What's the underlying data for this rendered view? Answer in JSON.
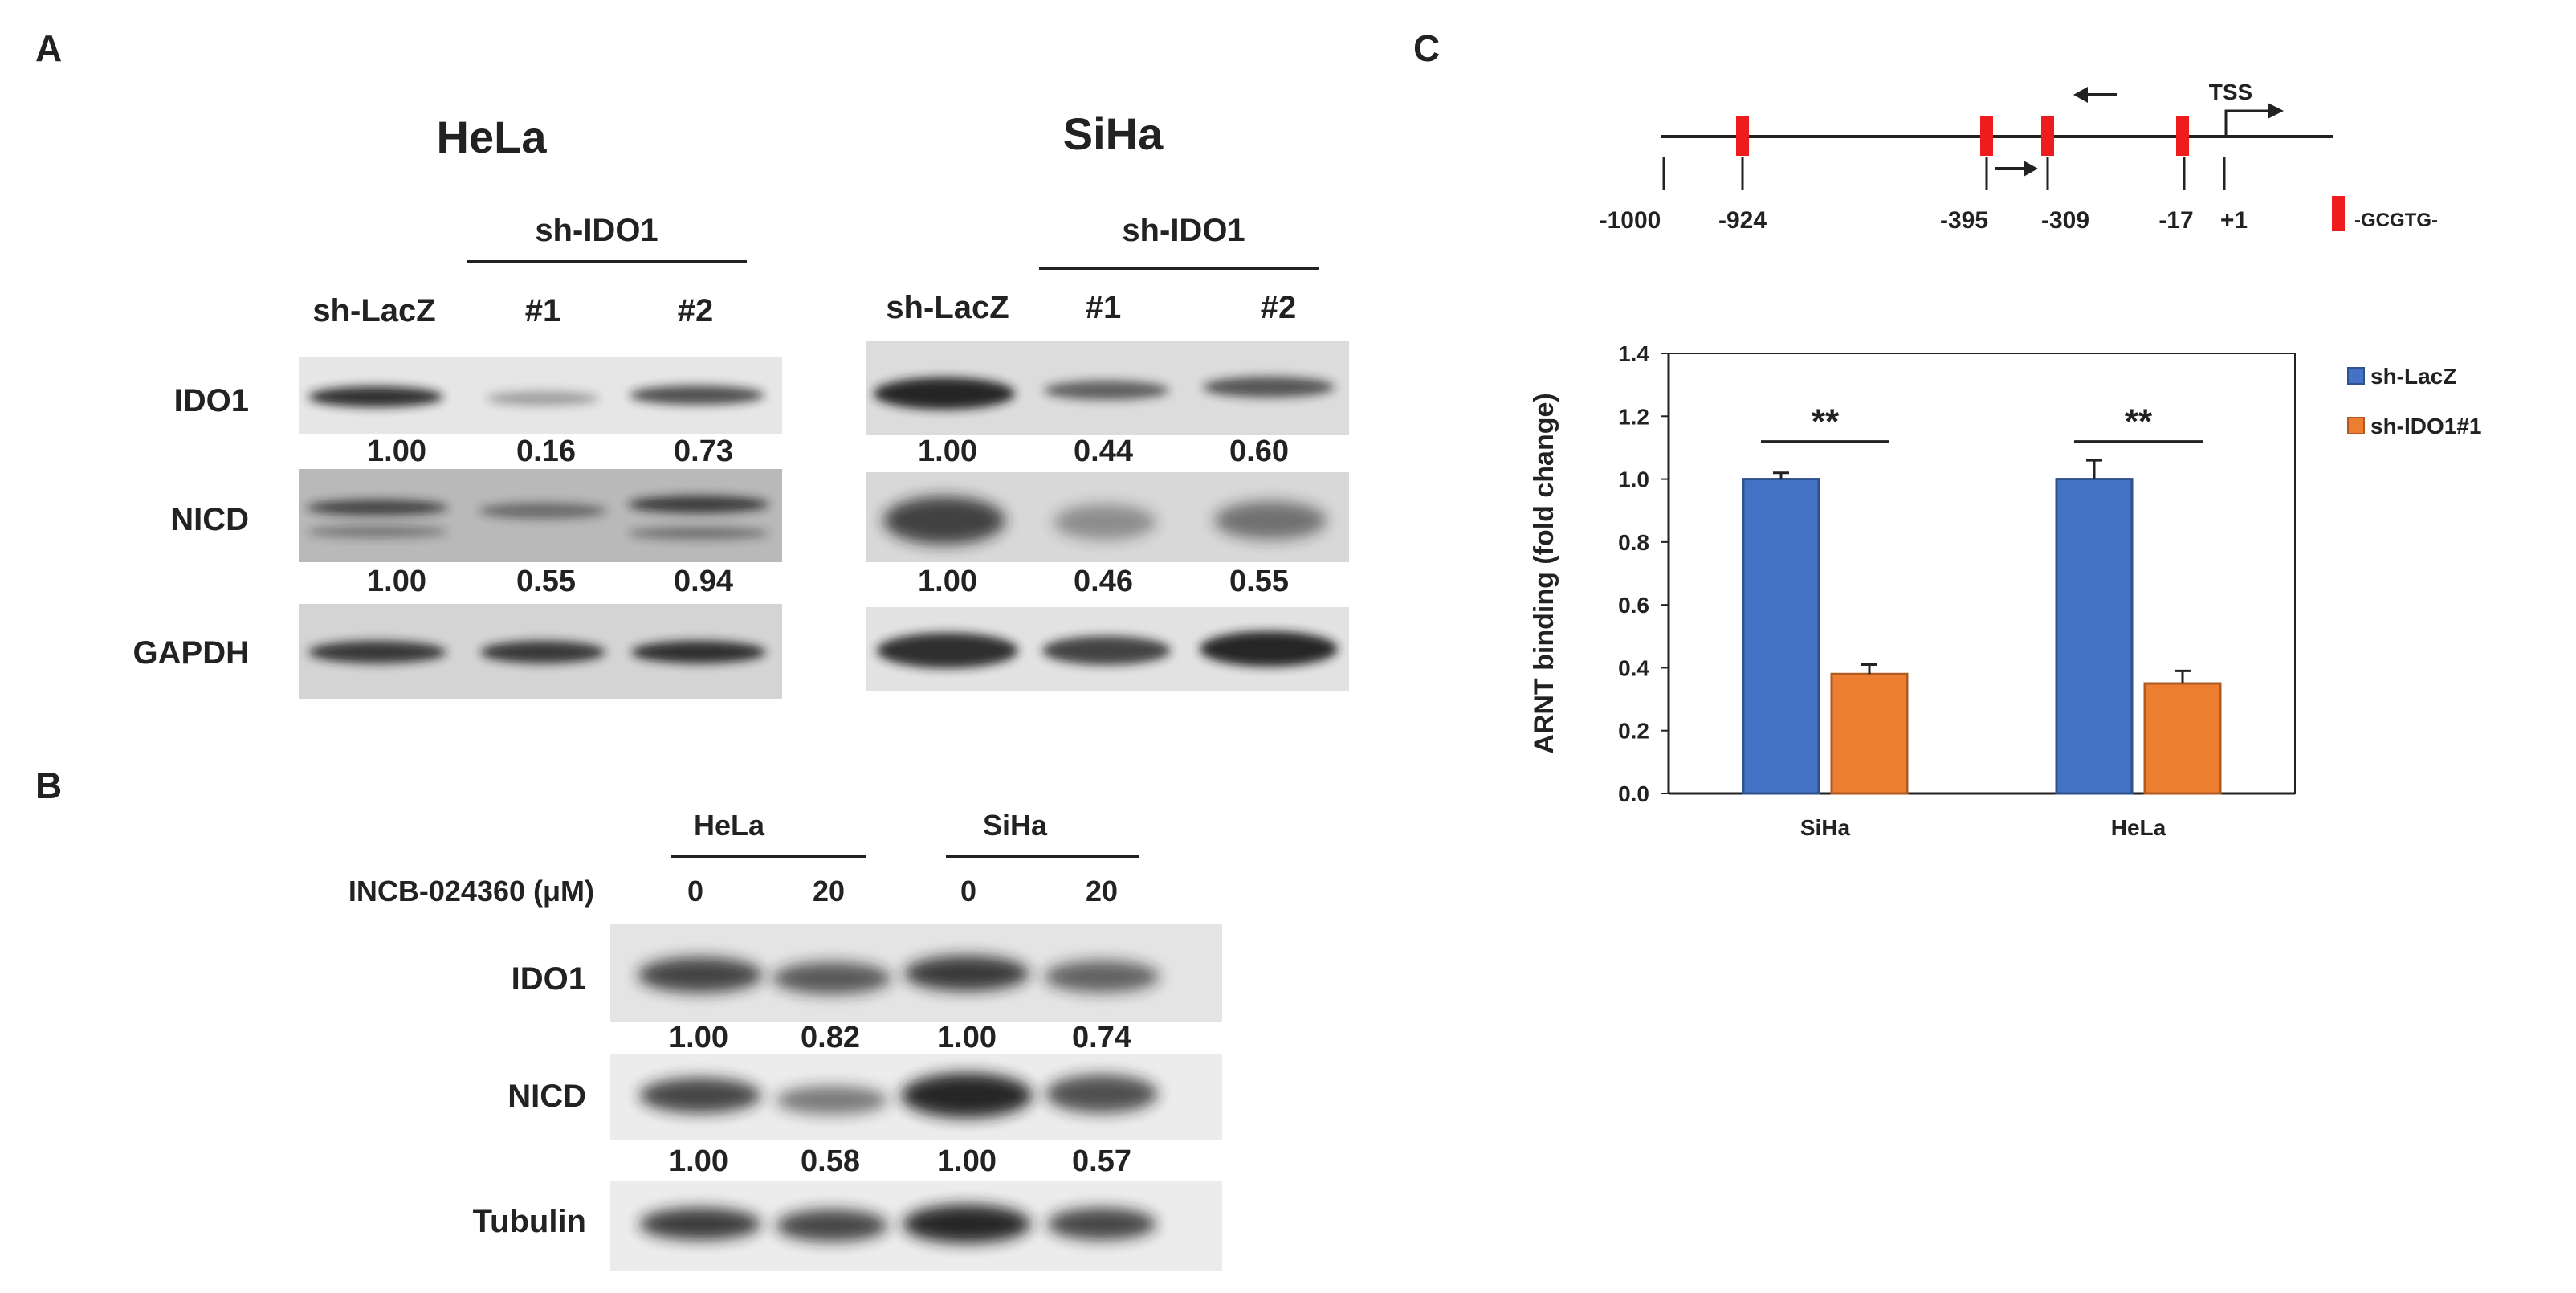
{
  "colors": {
    "series1": "#4472c4",
    "series2": "#ed7d31",
    "marker": "#ee1c1c",
    "text": "#222222",
    "blot_band": "#1c1c1c"
  },
  "panel_a": {
    "label": "A",
    "hela": {
      "title": "HeLa",
      "group": "sh-IDO1",
      "lanes": [
        "sh-LacZ",
        "#1",
        "#2"
      ],
      "rows": [
        {
          "name": "IDO1",
          "quant": [
            "1.00",
            "0.16",
            "0.73"
          ],
          "intensity": [
            0.9,
            0.35,
            0.75
          ]
        },
        {
          "name": "NICD",
          "quant": [
            "1.00",
            "0.55",
            "0.94"
          ],
          "intensity": [
            0.75,
            0.5,
            0.8
          ]
        },
        {
          "name": "GAPDH",
          "quant": null,
          "intensity": [
            0.85,
            0.85,
            0.9
          ]
        }
      ]
    },
    "siha": {
      "title": "SiHa",
      "group": "sh-IDO1",
      "lanes": [
        "sh-LacZ",
        "#1",
        "#2"
      ],
      "quants": [
        [
          "1.00",
          "0.44",
          "0.60"
        ],
        [
          "1.00",
          "0.46",
          "0.55"
        ]
      ],
      "intensity": [
        [
          0.95,
          0.65,
          0.7
        ],
        [
          0.85,
          0.45,
          0.55
        ],
        [
          0.95,
          0.85,
          0.95
        ]
      ]
    }
  },
  "panel_b": {
    "label": "B",
    "treatment": "INCB-024360 (μM)",
    "cell_lines": [
      "HeLa",
      "SiHa"
    ],
    "doses": [
      "0",
      "20",
      "0",
      "20"
    ],
    "rows": [
      {
        "name": "IDO1",
        "quant": [
          "1.00",
          "0.82",
          "1.00",
          "0.74"
        ],
        "intensity": [
          0.8,
          0.7,
          0.85,
          0.65
        ]
      },
      {
        "name": "NICD",
        "quant": [
          "1.00",
          "0.58",
          "1.00",
          "0.57"
        ],
        "intensity": [
          0.8,
          0.55,
          0.95,
          0.75
        ]
      },
      {
        "name": "Tubulin",
        "quant": null,
        "intensity": [
          0.85,
          0.8,
          0.95,
          0.8
        ]
      }
    ]
  },
  "panel_c": {
    "label": "C",
    "promoter": {
      "tss": "TSS",
      "positions": [
        "-1000",
        "-924",
        "-395",
        "-309",
        "-17",
        "+1"
      ],
      "legend": "-GCGTG-"
    },
    "chart_data": {
      "type": "bar",
      "categories": [
        "SiHa",
        "HeLa"
      ],
      "series": [
        {
          "name": "sh-LacZ",
          "values": [
            1.0,
            1.0
          ],
          "errors": [
            0.02,
            0.06
          ]
        },
        {
          "name": "sh-IDO1#1",
          "values": [
            0.38,
            0.35
          ],
          "errors": [
            0.03,
            0.04
          ]
        }
      ],
      "ylabel": "ARNT binding (fold change)",
      "ylim": [
        0,
        1.4
      ],
      "yticks": [
        "0.0",
        "0.2",
        "0.4",
        "0.6",
        "0.8",
        "1.0",
        "1.2",
        "1.4"
      ],
      "significance": [
        "**",
        "**"
      ],
      "legend_position": "top-right"
    }
  }
}
